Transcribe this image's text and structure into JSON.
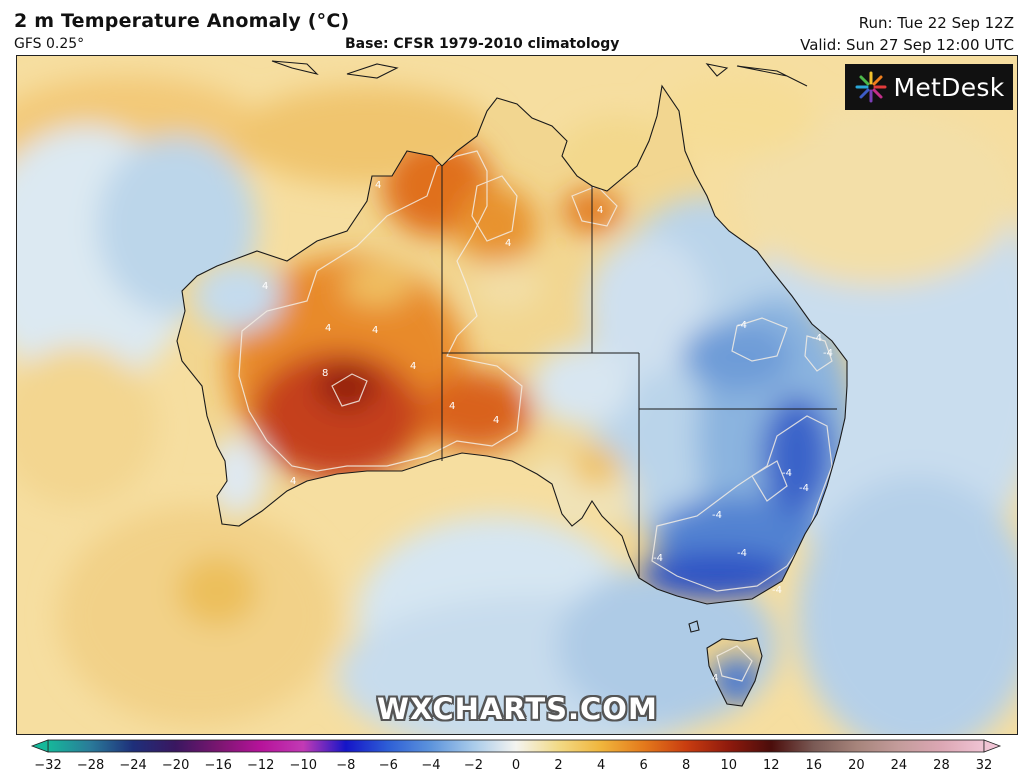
{
  "header": {
    "title": "2 m Temperature Anomaly (°C)",
    "model": "GFS 0.25°",
    "base": "Base: CFSR 1979-2010 climatology",
    "run": "Run: Tue 22 Sep 12Z",
    "valid": "Valid: Sun 27 Sep 12:00 UTC"
  },
  "logo": {
    "text": "MetDesk",
    "icon": "starburst-icon"
  },
  "watermark": "WXCHARTS.COM",
  "map": {
    "region": "Australia",
    "contour_labels": [
      "4",
      "4",
      "4",
      "4",
      "4",
      "4",
      "4",
      "4",
      "8",
      "4",
      "4",
      "-4",
      "-4",
      "-4",
      "-4",
      "-4",
      "-4",
      "-4",
      "-4",
      "-4",
      "4"
    ]
  },
  "colorbar": {
    "ticks": [
      "−32",
      "−28",
      "−24",
      "−20",
      "−16",
      "−12",
      "−10",
      "−8",
      "−6",
      "−4",
      "−2",
      "0",
      "2",
      "4",
      "6",
      "8",
      "10",
      "12",
      "16",
      "20",
      "24",
      "28",
      "32"
    ],
    "colors": [
      "#16b89a",
      "#2a7a99",
      "#1e2f7a",
      "#3a1760",
      "#7a1670",
      "#b6139a",
      "#c23ab5",
      "#1515c8",
      "#2e5fd6",
      "#5d94dc",
      "#a9cbea",
      "#f4f4f0",
      "#f2da86",
      "#f0b53c",
      "#e47a1c",
      "#c93d10",
      "#8f1a0d",
      "#4b0d0b",
      "#7a5a55",
      "#a6847b",
      "#c49c9b",
      "#dca7b4",
      "#f0c4d4"
    ]
  }
}
